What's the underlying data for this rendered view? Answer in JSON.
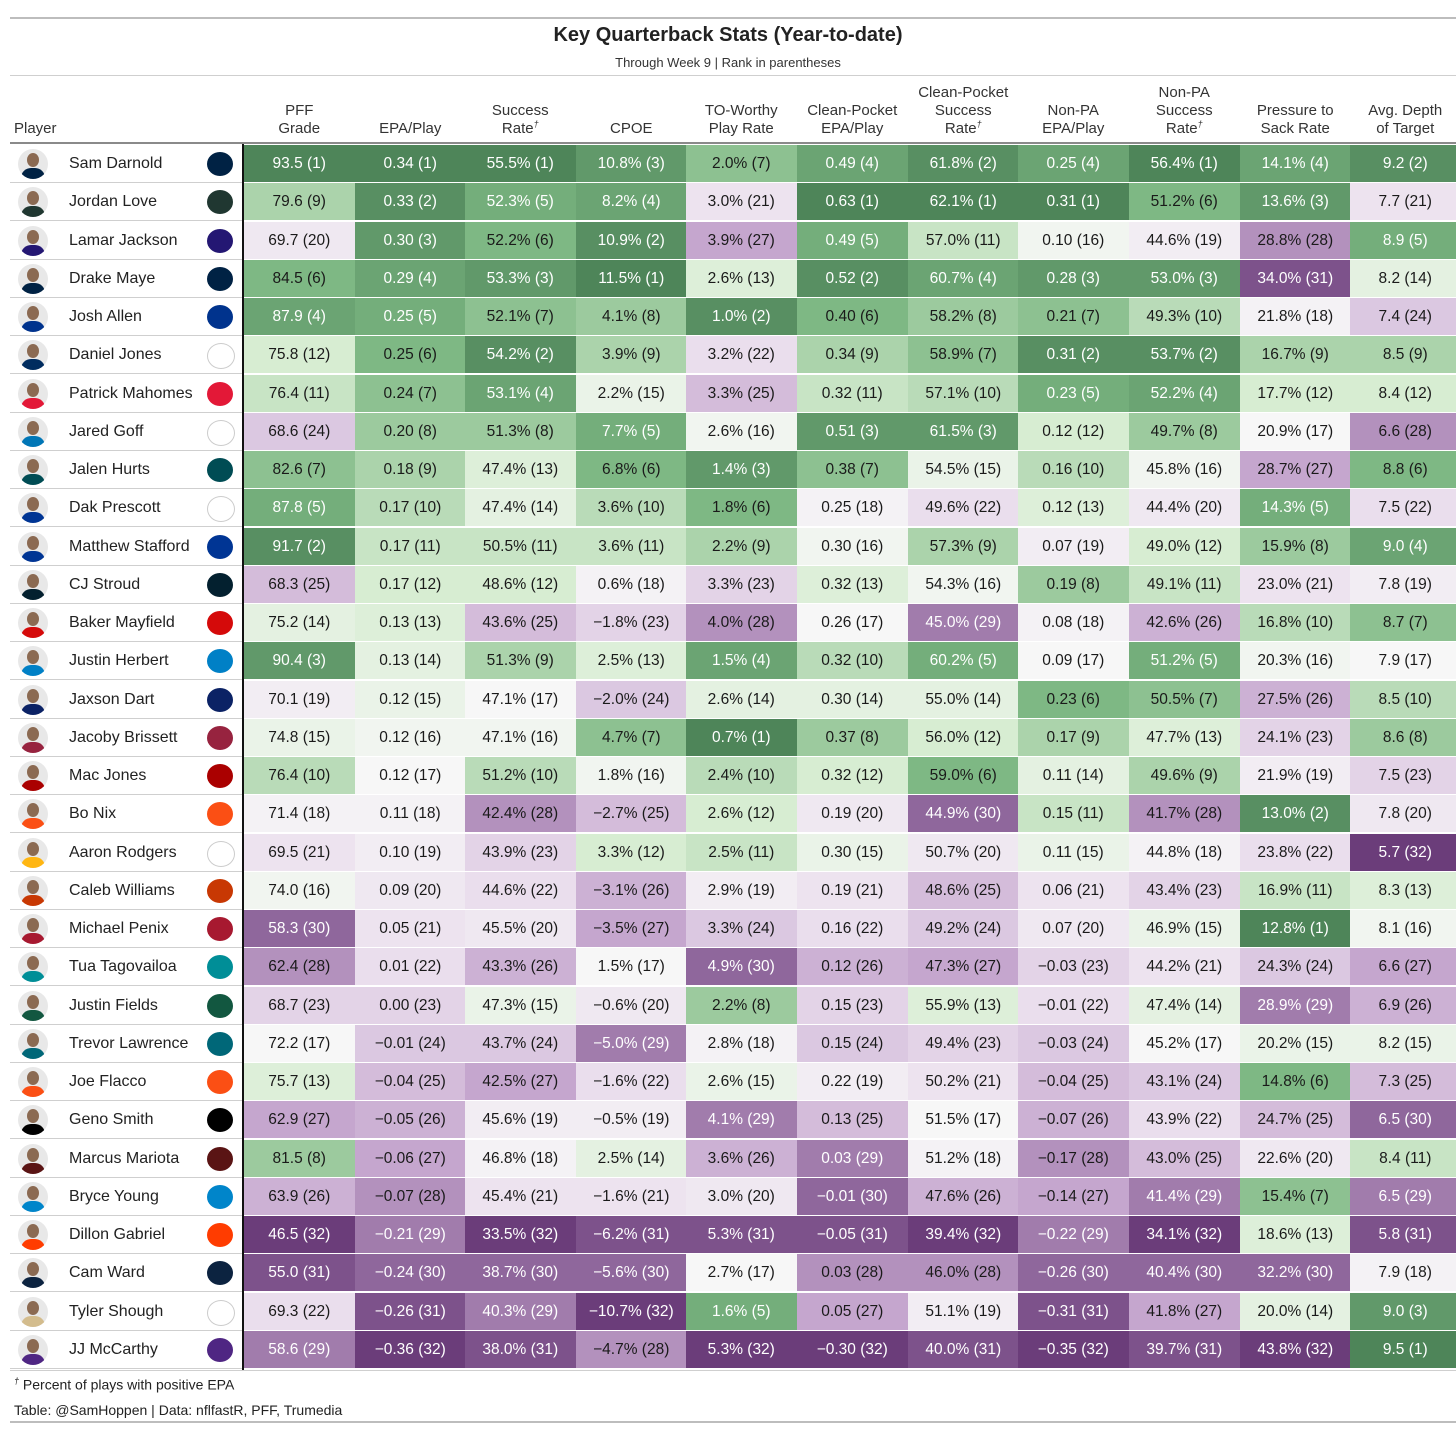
{
  "chart_data": {
    "type": "table",
    "title": "Key Quarterback Stats (Year-to-date)",
    "subtitle": "Through Week 9 | Rank in parentheses",
    "player_header": "Player",
    "footnote_mark": "†",
    "footnote": "Percent of plays with positive EPA",
    "credit": "Table: @SamHoppen | Data: nflfastR, PFF, Trumedia",
    "colors": {
      "green_strong": "#4e8559",
      "green_light": "#dcefd8",
      "neutral": "#f7f7f7",
      "purple_light": "#ece1ee",
      "purple_strong": "#6b3d7a",
      "divider": "#111111"
    },
    "columns": [
      {
        "key": "pff",
        "line1": "PFF",
        "line2": "Grade",
        "note": ""
      },
      {
        "key": "epa",
        "line1": "",
        "line2": "EPA/Play",
        "note": ""
      },
      {
        "key": "sr",
        "line1": "Success",
        "line2": "Rate",
        "note": "†"
      },
      {
        "key": "cpoe",
        "line1": "",
        "line2": "CPOE",
        "note": ""
      },
      {
        "key": "tow",
        "line1": "TO-Worthy",
        "line2": "Play Rate",
        "note": ""
      },
      {
        "key": "cpepa",
        "line1": "Clean-Pocket",
        "line2": "EPA/Play",
        "note": ""
      },
      {
        "key": "cpsr",
        "line1": "Clean-Pocket Success",
        "line2": "Rate",
        "note": "†"
      },
      {
        "key": "npepa",
        "line1": "Non-PA",
        "line2": "EPA/Play",
        "note": ""
      },
      {
        "key": "npsr",
        "line1": "Non-PA Success",
        "line2": "Rate",
        "note": "†"
      },
      {
        "key": "pts",
        "line1": "Pressure to",
        "line2": "Sack Rate",
        "note": ""
      },
      {
        "key": "adot",
        "line1": "Avg. Depth",
        "line2": "of Target",
        "note": ""
      }
    ],
    "rows": [
      {
        "player": "Sam Darnold",
        "team": "SEA",
        "values": [
          "93.5 (1)",
          "0.34 (1)",
          "55.5% (1)",
          "10.8% (3)",
          "2.0% (7)",
          "0.49 (4)",
          "61.8% (2)",
          "0.25 (4)",
          "56.4% (1)",
          "14.1% (4)",
          "9.2 (2)"
        ]
      },
      {
        "player": "Jordan Love",
        "team": "GB",
        "values": [
          "79.6 (9)",
          "0.33 (2)",
          "52.3% (5)",
          "8.2% (4)",
          "3.0% (21)",
          "0.63 (1)",
          "62.1% (1)",
          "0.31 (1)",
          "51.2% (6)",
          "13.6% (3)",
          "7.7 (21)"
        ]
      },
      {
        "player": "Lamar Jackson",
        "team": "BAL",
        "values": [
          "69.7 (20)",
          "0.30 (3)",
          "52.2% (6)",
          "10.9% (2)",
          "3.9% (27)",
          "0.49 (5)",
          "57.0% (11)",
          "0.10 (16)",
          "44.6% (19)",
          "28.8% (28)",
          "8.9 (5)"
        ]
      },
      {
        "player": "Drake Maye",
        "team": "NE",
        "values": [
          "84.5 (6)",
          "0.29 (4)",
          "53.3% (3)",
          "11.5% (1)",
          "2.6% (13)",
          "0.52 (2)",
          "60.7% (4)",
          "0.28 (3)",
          "53.0% (3)",
          "34.0% (31)",
          "8.2 (14)"
        ]
      },
      {
        "player": "Josh Allen",
        "team": "BUF",
        "values": [
          "87.9 (4)",
          "0.25 (5)",
          "52.1% (7)",
          "4.1% (8)",
          "1.0% (2)",
          "0.40 (6)",
          "58.2% (8)",
          "0.21 (7)",
          "49.3% (10)",
          "21.8% (18)",
          "7.4 (24)"
        ]
      },
      {
        "player": "Daniel Jones",
        "team": "IND",
        "values": [
          "75.8 (12)",
          "0.25 (6)",
          "54.2% (2)",
          "3.9% (9)",
          "3.2% (22)",
          "0.34 (9)",
          "58.9% (7)",
          "0.31 (2)",
          "53.7% (2)",
          "16.7% (9)",
          "8.5 (9)"
        ]
      },
      {
        "player": "Patrick Mahomes",
        "team": "KC",
        "values": [
          "76.4 (11)",
          "0.24 (7)",
          "53.1% (4)",
          "2.2% (15)",
          "3.3% (25)",
          "0.32 (11)",
          "57.1% (10)",
          "0.23 (5)",
          "52.2% (4)",
          "17.7% (12)",
          "8.4 (12)"
        ]
      },
      {
        "player": "Jared Goff",
        "team": "DET",
        "values": [
          "68.6 (24)",
          "0.20 (8)",
          "51.3% (8)",
          "7.7% (5)",
          "2.6% (16)",
          "0.51 (3)",
          "61.5% (3)",
          "0.12 (12)",
          "49.7% (8)",
          "20.9% (17)",
          "6.6 (28)"
        ]
      },
      {
        "player": "Jalen Hurts",
        "team": "PHI",
        "values": [
          "82.6 (7)",
          "0.18 (9)",
          "47.4% (13)",
          "6.8% (6)",
          "1.4% (3)",
          "0.38 (7)",
          "54.5% (15)",
          "0.16 (10)",
          "45.8% (16)",
          "28.7% (27)",
          "8.8 (6)"
        ]
      },
      {
        "player": "Dak Prescott",
        "team": "DAL",
        "values": [
          "87.8 (5)",
          "0.17 (10)",
          "47.4% (14)",
          "3.6% (10)",
          "1.8% (6)",
          "0.25 (18)",
          "49.6% (22)",
          "0.12 (13)",
          "44.4% (20)",
          "14.3% (5)",
          "7.5 (22)"
        ]
      },
      {
        "player": "Matthew Stafford",
        "team": "LAR",
        "values": [
          "91.7 (2)",
          "0.17 (11)",
          "50.5% (11)",
          "3.6% (11)",
          "2.2% (9)",
          "0.30 (16)",
          "57.3% (9)",
          "0.07 (19)",
          "49.0% (12)",
          "15.9% (8)",
          "9.0 (4)"
        ]
      },
      {
        "player": "CJ Stroud",
        "team": "HOU",
        "values": [
          "68.3 (25)",
          "0.17 (12)",
          "48.6% (12)",
          "0.6% (18)",
          "3.3% (23)",
          "0.32 (13)",
          "54.3% (16)",
          "0.19 (8)",
          "49.1% (11)",
          "23.0% (21)",
          "7.8 (19)"
        ]
      },
      {
        "player": "Baker Mayfield",
        "team": "TB",
        "values": [
          "75.2 (14)",
          "0.13 (13)",
          "43.6% (25)",
          "−1.8% (23)",
          "4.0% (28)",
          "0.26 (17)",
          "45.0% (29)",
          "0.08 (18)",
          "42.6% (26)",
          "16.8% (10)",
          "8.7 (7)"
        ]
      },
      {
        "player": "Justin Herbert",
        "team": "LAC",
        "values": [
          "90.4 (3)",
          "0.13 (14)",
          "51.3% (9)",
          "2.5% (13)",
          "1.5% (4)",
          "0.32 (10)",
          "60.2% (5)",
          "0.09 (17)",
          "51.2% (5)",
          "20.3% (16)",
          "7.9 (17)"
        ]
      },
      {
        "player": "Jaxson Dart",
        "team": "NYG",
        "values": [
          "70.1 (19)",
          "0.12 (15)",
          "47.1% (17)",
          "−2.0% (24)",
          "2.6% (14)",
          "0.30 (14)",
          "55.0% (14)",
          "0.23 (6)",
          "50.5% (7)",
          "27.5% (26)",
          "8.5 (10)"
        ]
      },
      {
        "player": "Jacoby Brissett",
        "team": "ARI",
        "values": [
          "74.8 (15)",
          "0.12 (16)",
          "47.1% (16)",
          "4.7% (7)",
          "0.7% (1)",
          "0.37 (8)",
          "56.0% (12)",
          "0.17 (9)",
          "47.7% (13)",
          "24.1% (23)",
          "8.6 (8)"
        ]
      },
      {
        "player": "Mac Jones",
        "team": "SF",
        "values": [
          "76.4 (10)",
          "0.12 (17)",
          "51.2% (10)",
          "1.8% (16)",
          "2.4% (10)",
          "0.32 (12)",
          "59.0% (6)",
          "0.11 (14)",
          "49.6% (9)",
          "21.9% (19)",
          "7.5 (23)"
        ]
      },
      {
        "player": "Bo Nix",
        "team": "DEN",
        "values": [
          "71.4 (18)",
          "0.11 (18)",
          "42.4% (28)",
          "−2.7% (25)",
          "2.6% (12)",
          "0.19 (20)",
          "44.9% (30)",
          "0.15 (11)",
          "41.7% (28)",
          "13.0% (2)",
          "7.8 (20)"
        ]
      },
      {
        "player": "Aaron Rodgers",
        "team": "PIT",
        "values": [
          "69.5 (21)",
          "0.10 (19)",
          "43.9% (23)",
          "3.3% (12)",
          "2.5% (11)",
          "0.30 (15)",
          "50.7% (20)",
          "0.11 (15)",
          "44.8% (18)",
          "23.8% (22)",
          "5.7 (32)"
        ]
      },
      {
        "player": "Caleb Williams",
        "team": "CHI",
        "values": [
          "74.0 (16)",
          "0.09 (20)",
          "44.6% (22)",
          "−3.1% (26)",
          "2.9% (19)",
          "0.19 (21)",
          "48.6% (25)",
          "0.06 (21)",
          "43.4% (23)",
          "16.9% (11)",
          "8.3 (13)"
        ]
      },
      {
        "player": "Michael Penix",
        "team": "ATL",
        "values": [
          "58.3 (30)",
          "0.05 (21)",
          "45.5% (20)",
          "−3.5% (27)",
          "3.3% (24)",
          "0.16 (22)",
          "49.2% (24)",
          "0.07 (20)",
          "46.9% (15)",
          "12.8% (1)",
          "8.1 (16)"
        ]
      },
      {
        "player": "Tua Tagovailoa",
        "team": "MIA",
        "values": [
          "62.4 (28)",
          "0.01 (22)",
          "43.3% (26)",
          "1.5% (17)",
          "4.9% (30)",
          "0.12 (26)",
          "47.3% (27)",
          "−0.03 (23)",
          "44.2% (21)",
          "24.3% (24)",
          "6.6 (27)"
        ]
      },
      {
        "player": "Justin Fields",
        "team": "NYJ",
        "values": [
          "68.7 (23)",
          "0.00 (23)",
          "47.3% (15)",
          "−0.6% (20)",
          "2.2% (8)",
          "0.15 (23)",
          "55.9% (13)",
          "−0.01 (22)",
          "47.4% (14)",
          "28.9% (29)",
          "6.9 (26)"
        ]
      },
      {
        "player": "Trevor Lawrence",
        "team": "JAX",
        "values": [
          "72.2 (17)",
          "−0.01 (24)",
          "43.7% (24)",
          "−5.0% (29)",
          "2.8% (18)",
          "0.15 (24)",
          "49.4% (23)",
          "−0.03 (24)",
          "45.2% (17)",
          "20.2% (15)",
          "8.2 (15)"
        ]
      },
      {
        "player": "Joe Flacco",
        "team": "CIN",
        "values": [
          "75.7 (13)",
          "−0.04 (25)",
          "42.5% (27)",
          "−1.6% (22)",
          "2.6% (15)",
          "0.22 (19)",
          "50.2% (21)",
          "−0.04 (25)",
          "43.1% (24)",
          "14.8% (6)",
          "7.3 (25)"
        ]
      },
      {
        "player": "Geno Smith",
        "team": "LV",
        "values": [
          "62.9 (27)",
          "−0.05 (26)",
          "45.6% (19)",
          "−0.5% (19)",
          "4.1% (29)",
          "0.13 (25)",
          "51.5% (17)",
          "−0.07 (26)",
          "43.9% (22)",
          "24.7% (25)",
          "6.5 (30)"
        ]
      },
      {
        "player": "Marcus Mariota",
        "team": "WAS",
        "values": [
          "81.5 (8)",
          "−0.06 (27)",
          "46.8% (18)",
          "2.5% (14)",
          "3.6% (26)",
          "0.03 (29)",
          "51.2% (18)",
          "−0.17 (28)",
          "43.0% (25)",
          "22.6% (20)",
          "8.4 (11)"
        ]
      },
      {
        "player": "Bryce Young",
        "team": "CAR",
        "values": [
          "63.9 (26)",
          "−0.07 (28)",
          "45.4% (21)",
          "−1.6% (21)",
          "3.0% (20)",
          "−0.01 (30)",
          "47.6% (26)",
          "−0.14 (27)",
          "41.4% (29)",
          "15.4% (7)",
          "6.5 (29)"
        ]
      },
      {
        "player": "Dillon Gabriel",
        "team": "CLE",
        "values": [
          "46.5 (32)",
          "−0.21 (29)",
          "33.5% (32)",
          "−6.2% (31)",
          "5.3% (31)",
          "−0.05 (31)",
          "39.4% (32)",
          "−0.22 (29)",
          "34.1% (32)",
          "18.6% (13)",
          "5.8 (31)"
        ]
      },
      {
        "player": "Cam Ward",
        "team": "TEN",
        "values": [
          "55.0 (31)",
          "−0.24 (30)",
          "38.7% (30)",
          "−5.6% (30)",
          "2.7% (17)",
          "0.03 (28)",
          "46.0% (28)",
          "−0.26 (30)",
          "40.4% (30)",
          "32.2% (30)",
          "7.9 (18)"
        ]
      },
      {
        "player": "Tyler Shough",
        "team": "NO",
        "values": [
          "69.3 (22)",
          "−0.26 (31)",
          "40.3% (29)",
          "−10.7% (32)",
          "1.6% (5)",
          "0.05 (27)",
          "51.1% (19)",
          "−0.31 (31)",
          "41.8% (27)",
          "20.0% (14)",
          "9.0 (3)"
        ]
      },
      {
        "player": "JJ McCarthy",
        "team": "MIN",
        "values": [
          "58.6 (29)",
          "−0.36 (32)",
          "38.0% (31)",
          "−4.7% (28)",
          "5.3% (32)",
          "−0.30 (32)",
          "40.0% (31)",
          "−0.35 (32)",
          "39.7% (31)",
          "43.8% (32)",
          "9.5 (1)"
        ]
      }
    ]
  }
}
